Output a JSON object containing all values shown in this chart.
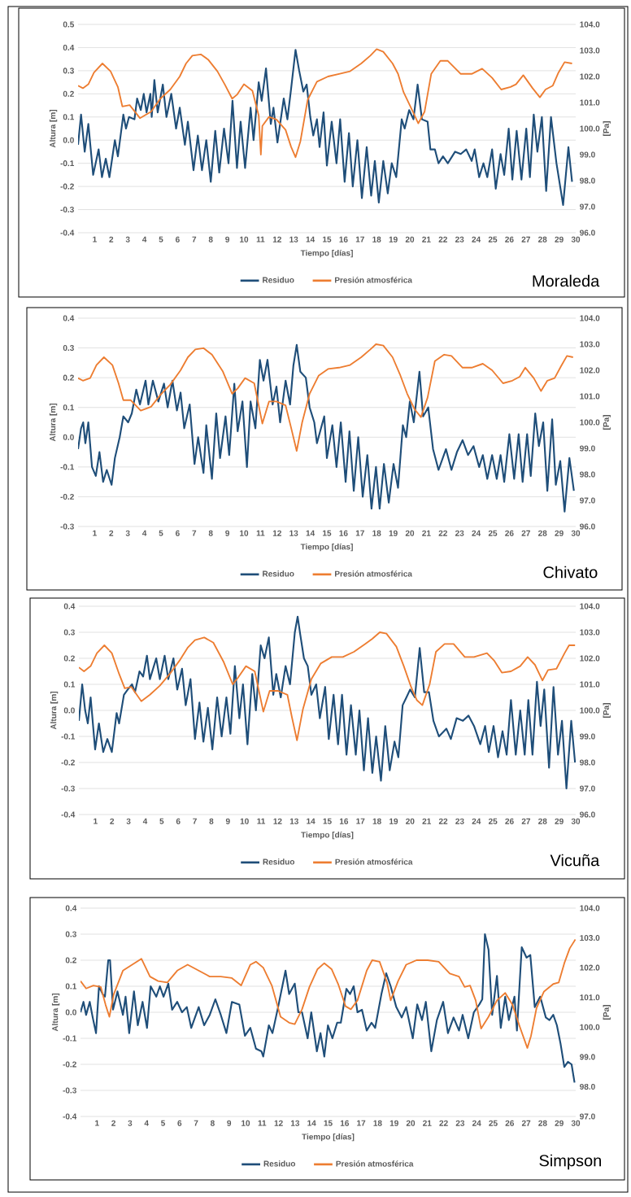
{
  "chart_data": [
    {
      "type": "line",
      "title": "Moraleda",
      "xlabel": "Tiempo [días]",
      "ylabel": "Altura [m]",
      "y2label": "[Pa]",
      "grid": "y",
      "legend": "bottom",
      "xlim": [
        0,
        30
      ],
      "xticks": [
        1,
        2,
        3,
        4,
        5,
        6,
        7,
        8,
        9,
        10,
        11,
        12,
        13,
        14,
        15,
        16,
        17,
        18,
        19,
        20,
        21,
        22,
        23,
        24,
        25,
        26,
        27,
        28,
        29,
        30
      ],
      "ylim": [
        -0.4,
        0.5
      ],
      "yticks": [
        {
          "value": -0.4,
          "label": "-0.4"
        },
        {
          "value": -0.3,
          "label": "-0.3"
        },
        {
          "value": -0.2,
          "label": "-0.2"
        },
        {
          "value": -0.1,
          "label": "-0.1"
        },
        {
          "value": 0,
          "label": "0.0"
        },
        0.1,
        0.2,
        0.3,
        0.4,
        0.5
      ],
      "y2lim": [
        96,
        104
      ],
      "y2ticks": [
        {
          "value": 96,
          "label": "96.0"
        },
        {
          "value": 97,
          "label": "97.0"
        },
        {
          "value": 98,
          "label": "98.0"
        },
        {
          "value": 99,
          "label": "99.0"
        },
        {
          "value": 100,
          "label": "100.0"
        },
        {
          "value": 101,
          "label": "101.0"
        },
        {
          "value": 102,
          "label": "102.0"
        },
        {
          "value": 103,
          "label": "103.0"
        },
        {
          "value": 104,
          "label": "104.0"
        }
      ],
      "series": [
        {
          "name": "Residuo",
          "color": "#1f4e79",
          "x": [
            0,
            0.18,
            0.4,
            0.62,
            0.91,
            1.24,
            1.44,
            1.67,
            1.89,
            2.22,
            2.4,
            2.73,
            2.89,
            3.07,
            3.4,
            3.56,
            3.78,
            3.96,
            4.13,
            4.36,
            4.44,
            4.6,
            4.8,
            5.11,
            5.33,
            5.62,
            5.91,
            6.13,
            6.44,
            6.62,
            6.96,
            7.22,
            7.47,
            7.73,
            8.0,
            8.27,
            8.51,
            8.8,
            9.07,
            9.31,
            9.58,
            9.8,
            10.07,
            10.4,
            10.58,
            10.89,
            11.07,
            11.33,
            11.62,
            11.78,
            12.02,
            12.4,
            12.62,
            12.84,
            13.11,
            13.33,
            13.58,
            13.78,
            14.0,
            14.18,
            14.4,
            14.56,
            14.8,
            15.0,
            15.29,
            15.58,
            15.8,
            16.07,
            16.33,
            16.56,
            16.84,
            17.11,
            17.4,
            17.67,
            17.89,
            18.13,
            18.4,
            18.67,
            18.91,
            19.18,
            19.51,
            19.69,
            19.96,
            20.22,
            20.47,
            20.73,
            21.07,
            21.24,
            21.51,
            21.73,
            22.0,
            22.29,
            22.73,
            23.07,
            23.4,
            23.73,
            23.91,
            24.18,
            24.44,
            24.67,
            24.96,
            25.18,
            25.47,
            25.69,
            25.96,
            26.18,
            26.44,
            26.73,
            27.02,
            27.24,
            27.47,
            27.69,
            27.96,
            28.22,
            28.51,
            28.84,
            29.24,
            29.56,
            29.78
          ],
          "values": [
            -0.02,
            0.11,
            -0.05,
            0.07,
            -0.15,
            -0.04,
            -0.16,
            -0.08,
            -0.16,
            0.0,
            -0.07,
            0.11,
            0.05,
            0.1,
            0.09,
            0.18,
            0.13,
            0.2,
            0.12,
            0.2,
            0.1,
            0.26,
            0.12,
            0.24,
            0.1,
            0.2,
            0.05,
            0.14,
            -0.02,
            0.08,
            -0.13,
            0.02,
            -0.13,
            0.0,
            -0.18,
            0.04,
            -0.14,
            0.05,
            -0.1,
            0.17,
            -0.12,
            0.08,
            -0.12,
            0.14,
            0.0,
            0.25,
            0.17,
            0.31,
            0.07,
            0.14,
            -0.01,
            0.18,
            0.09,
            0.22,
            0.39,
            0.3,
            0.21,
            0.24,
            0.1,
            0.02,
            0.09,
            -0.03,
            0.12,
            -0.11,
            0.08,
            -0.1,
            0.09,
            -0.18,
            0.03,
            -0.2,
            0.0,
            -0.25,
            -0.03,
            -0.24,
            -0.09,
            -0.27,
            -0.09,
            -0.23,
            -0.1,
            -0.16,
            0.09,
            0.05,
            0.13,
            0.09,
            0.24,
            0.09,
            0.08,
            -0.04,
            -0.04,
            -0.1,
            -0.07,
            -0.1,
            -0.05,
            -0.06,
            -0.04,
            -0.09,
            -0.04,
            -0.16,
            -0.1,
            -0.16,
            -0.04,
            -0.21,
            -0.06,
            -0.15,
            0.05,
            -0.17,
            0.04,
            -0.17,
            0.05,
            -0.16,
            0.11,
            -0.05,
            0.1,
            -0.22,
            0.1,
            -0.1,
            -0.28,
            -0.03,
            -0.18
          ]
        },
        {
          "name": "Presión atmosférica",
          "color": "#ed7d31",
          "axis": "y2",
          "x": [
            0,
            0.29,
            0.62,
            0.96,
            1.47,
            1.96,
            2.4,
            2.67,
            3.11,
            3.73,
            4.4,
            4.96,
            5.56,
            6.13,
            6.51,
            6.89,
            7.4,
            7.84,
            8.4,
            8.84,
            9.29,
            9.58,
            10.0,
            10.51,
            10.89,
            11.02,
            11.11,
            11.51,
            11.96,
            12.51,
            12.84,
            13.11,
            13.4,
            13.84,
            14.4,
            15.07,
            15.73,
            16.4,
            17.07,
            17.62,
            18.0,
            18.4,
            18.96,
            19.29,
            19.62,
            20.07,
            20.51,
            20.89,
            21.29,
            21.84,
            22.29,
            23.07,
            23.73,
            24.36,
            24.96,
            25.51,
            26.07,
            26.4,
            26.84,
            27.4,
            27.84,
            28.18,
            28.62,
            28.96,
            29.33,
            29.78
          ],
          "values": [
            101.65,
            101.55,
            101.7,
            102.15,
            102.5,
            102.2,
            101.6,
            100.85,
            100.9,
            100.4,
            100.65,
            101.15,
            101.5,
            102.0,
            102.5,
            102.8,
            102.85,
            102.65,
            102.2,
            101.7,
            101.15,
            101.3,
            101.7,
            101.45,
            100.5,
            99.0,
            100.1,
            100.45,
            100.35,
            99.95,
            99.3,
            98.9,
            99.5,
            101.1,
            101.8,
            102.0,
            102.1,
            102.2,
            102.5,
            102.8,
            103.05,
            102.95,
            102.5,
            102.1,
            101.4,
            100.8,
            100.2,
            100.65,
            102.1,
            102.6,
            102.6,
            102.1,
            102.1,
            102.3,
            101.95,
            101.5,
            101.6,
            101.7,
            102.05,
            101.55,
            101.2,
            101.5,
            101.65,
            102.15,
            102.55,
            102.5
          ]
        }
      ]
    },
    {
      "type": "line",
      "title": "Chivato",
      "xlabel": "Tiempo [días]",
      "ylabel": "Altura [m]",
      "y2label": "[Pa]",
      "grid": "y",
      "legend": "bottom",
      "xlim": [
        0,
        30
      ],
      "xticks": [
        1,
        2,
        3,
        4,
        5,
        6,
        7,
        8,
        9,
        10,
        11,
        12,
        13,
        14,
        15,
        16,
        17,
        18,
        19,
        20,
        21,
        22,
        23,
        24,
        25,
        26,
        27,
        28,
        29,
        30
      ],
      "ylim": [
        -0.3,
        0.4
      ],
      "yticks": [
        {
          "value": -0.3,
          "label": "-0.3"
        },
        {
          "value": -0.2,
          "label": "-0.2"
        },
        {
          "value": -0.1,
          "label": "-0.1"
        },
        {
          "value": 0,
          "label": "0.0"
        },
        0.1,
        0.2,
        0.3,
        0.4
      ],
      "y2lim": [
        96,
        104
      ],
      "y2ticks": [
        {
          "value": 96,
          "label": "96.0"
        },
        {
          "value": 97,
          "label": "97.0"
        },
        {
          "value": 98,
          "label": "98.0"
        },
        {
          "value": 99,
          "label": "99.0"
        },
        {
          "value": 100,
          "label": "100.0"
        },
        {
          "value": 101,
          "label": "101.0"
        },
        {
          "value": 102,
          "label": "102.0"
        },
        {
          "value": 103,
          "label": "103.0"
        },
        {
          "value": 104,
          "label": "104.0"
        }
      ],
      "series": [
        {
          "name": "Residuo",
          "color": "#1f4e79",
          "x": [
            0,
            0.18,
            0.31,
            0.44,
            0.62,
            0.84,
            1.07,
            1.29,
            1.51,
            1.73,
            2.02,
            2.22,
            2.51,
            2.73,
            3.02,
            3.24,
            3.51,
            3.73,
            4.07,
            4.24,
            4.51,
            4.84,
            5.18,
            5.4,
            5.69,
            5.96,
            6.18,
            6.4,
            6.73,
            7.02,
            7.24,
            7.56,
            7.73,
            8.07,
            8.33,
            8.56,
            8.89,
            9.11,
            9.42,
            9.62,
            9.91,
            10.18,
            10.4,
            10.69,
            10.96,
            11.18,
            11.42,
            11.73,
            11.96,
            12.18,
            12.51,
            12.78,
            12.98,
            13.18,
            13.4,
            13.73,
            13.96,
            14.24,
            14.4,
            14.84,
            15.0,
            15.33,
            15.58,
            15.84,
            16.13,
            16.36,
            16.62,
            16.89,
            17.16,
            17.44,
            17.69,
            17.96,
            18.18,
            18.44,
            18.73,
            19.02,
            19.29,
            19.58,
            19.78,
            20.0,
            20.24,
            20.58,
            20.8,
            21.11,
            21.4,
            21.73,
            22.18,
            22.51,
            22.84,
            23.18,
            23.51,
            23.84,
            24.18,
            24.4,
            24.67,
            24.96,
            25.24,
            25.47,
            25.69,
            26.0,
            26.29,
            26.56,
            26.8,
            27.07,
            27.29,
            27.56,
            27.78,
            28.04,
            28.29,
            28.58,
            28.8,
            29.07,
            29.33,
            29.62,
            29.89
          ],
          "values": [
            -0.04,
            0.03,
            0.05,
            -0.02,
            0.05,
            -0.1,
            -0.13,
            -0.05,
            -0.15,
            -0.11,
            -0.16,
            -0.07,
            0.0,
            0.07,
            0.05,
            0.08,
            0.16,
            0.11,
            0.19,
            0.11,
            0.19,
            0.12,
            0.18,
            0.1,
            0.19,
            0.09,
            0.15,
            0.03,
            0.11,
            -0.09,
            0.0,
            -0.12,
            0.04,
            -0.14,
            0.08,
            -0.07,
            0.07,
            -0.06,
            0.18,
            0.02,
            0.12,
            -0.1,
            0.12,
            0.03,
            0.26,
            0.19,
            0.26,
            0.11,
            0.17,
            0.05,
            0.19,
            0.11,
            0.24,
            0.31,
            0.22,
            0.2,
            0.1,
            0.05,
            -0.02,
            0.07,
            -0.07,
            0.04,
            -0.1,
            0.05,
            -0.15,
            0.02,
            -0.18,
            0.0,
            -0.2,
            -0.06,
            -0.24,
            -0.1,
            -0.24,
            -0.09,
            -0.22,
            -0.09,
            -0.17,
            0.04,
            0.0,
            0.12,
            0.05,
            0.22,
            0.07,
            0.1,
            -0.04,
            -0.11,
            -0.04,
            -0.11,
            -0.05,
            -0.01,
            -0.06,
            -0.03,
            -0.1,
            -0.06,
            -0.14,
            -0.06,
            -0.14,
            -0.06,
            -0.15,
            0.01,
            -0.14,
            0.01,
            -0.15,
            0.01,
            -0.13,
            0.08,
            -0.03,
            0.05,
            -0.18,
            0.06,
            -0.16,
            -0.08,
            -0.25,
            -0.07,
            -0.18
          ]
        },
        {
          "name": "Presión atmosférica",
          "color": "#ed7d31",
          "axis": "y2",
          "x": [
            0,
            0.29,
            0.73,
            1.11,
            1.56,
            2.07,
            2.44,
            2.73,
            3.18,
            3.78,
            4.4,
            4.96,
            5.56,
            6.18,
            6.62,
            7.07,
            7.56,
            8.07,
            8.73,
            9.29,
            9.62,
            10.07,
            10.62,
            11.11,
            11.51,
            11.96,
            12.51,
            12.84,
            13.18,
            13.51,
            13.96,
            14.51,
            15.07,
            15.73,
            16.4,
            17.07,
            17.62,
            17.96,
            18.4,
            18.96,
            19.4,
            19.84,
            20.29,
            20.67,
            21.07,
            21.51,
            22.07,
            22.51,
            23.18,
            23.73,
            24.4,
            24.96,
            25.62,
            26.18,
            26.62,
            26.96,
            27.47,
            27.91,
            28.29,
            28.73,
            29.11,
            29.47,
            29.84
          ],
          "values": [
            101.7,
            101.6,
            101.7,
            102.2,
            102.5,
            102.2,
            101.5,
            100.85,
            100.85,
            100.45,
            100.6,
            101.05,
            101.45,
            102.0,
            102.5,
            102.8,
            102.85,
            102.6,
            101.95,
            101.1,
            101.3,
            101.7,
            101.5,
            99.95,
            100.8,
            100.8,
            100.65,
            99.8,
            98.9,
            100.0,
            101.1,
            101.8,
            102.05,
            102.1,
            102.2,
            102.5,
            102.8,
            103.0,
            102.95,
            102.5,
            101.85,
            101.1,
            100.5,
            100.2,
            100.95,
            102.35,
            102.6,
            102.55,
            102.1,
            102.1,
            102.25,
            102.0,
            101.5,
            101.6,
            101.75,
            102.1,
            101.7,
            101.2,
            101.6,
            101.7,
            102.15,
            102.55,
            102.5
          ]
        }
      ]
    },
    {
      "type": "line",
      "title": "Vicuña",
      "xlabel": "Tiempo [días]",
      "ylabel": "Altura [m]",
      "y2label": "[Pa]",
      "grid": "y",
      "legend": "bottom",
      "xlim": [
        0,
        30
      ],
      "xticks": [
        1,
        2,
        3,
        4,
        5,
        6,
        7,
        8,
        9,
        10,
        11,
        12,
        13,
        14,
        15,
        16,
        17,
        18,
        19,
        20,
        21,
        22,
        23,
        24,
        25,
        26,
        27,
        28,
        29,
        30
      ],
      "ylim": [
        -0.4,
        0.4
      ],
      "yticks": [
        {
          "value": -0.4,
          "label": "-0.4"
        },
        {
          "value": -0.3,
          "label": "-0.3"
        },
        {
          "value": -0.2,
          "label": "-0.2"
        },
        {
          "value": -0.1,
          "label": "-0.1"
        },
        {
          "value": 0,
          "label": "0.0"
        },
        0.1,
        0.2,
        0.3,
        0.4
      ],
      "y2lim": [
        96,
        104
      ],
      "y2ticks": [
        {
          "value": 96,
          "label": "96.0"
        },
        {
          "value": 97,
          "label": "97.0"
        },
        {
          "value": 98,
          "label": "98.0"
        },
        {
          "value": 99,
          "label": "99.0"
        },
        {
          "value": 100,
          "label": "100.0"
        },
        {
          "value": 101,
          "label": "101.0"
        },
        {
          "value": 102,
          "label": "102.0"
        },
        {
          "value": 103,
          "label": "103.0"
        },
        {
          "value": 104,
          "label": "104.0"
        }
      ],
      "series": [
        {
          "name": "Residuo",
          "color": "#1f4e79",
          "x": [
            0,
            0.2,
            0.38,
            0.54,
            0.71,
            0.98,
            1.21,
            1.47,
            1.72,
            1.99,
            2.28,
            2.43,
            2.72,
            2.95,
            3.21,
            3.39,
            3.66,
            3.88,
            4.11,
            4.29,
            4.67,
            4.89,
            5.18,
            5.4,
            5.71,
            5.94,
            6.23,
            6.45,
            6.74,
            7.01,
            7.28,
            7.52,
            7.79,
            8.06,
            8.35,
            8.62,
            8.91,
            9.15,
            9.42,
            9.69,
            9.91,
            10.18,
            10.47,
            10.69,
            10.98,
            11.21,
            11.47,
            11.74,
            11.92,
            12.19,
            12.48,
            12.75,
            13.04,
            13.21,
            13.37,
            13.59,
            13.82,
            14.04,
            14.33,
            14.55,
            14.87,
            15.09,
            15.38,
            15.65,
            15.89,
            16.16,
            16.43,
            16.72,
            16.94,
            17.21,
            17.46,
            17.72,
            17.95,
            18.24,
            18.5,
            18.77,
            19.06,
            19.29,
            19.55,
            19.78,
            20.0,
            20.29,
            20.58,
            20.85,
            21.14,
            21.41,
            21.74,
            22.19,
            22.46,
            22.81,
            23.19,
            23.53,
            23.86,
            24.24,
            24.53,
            24.75,
            25.04,
            25.31,
            25.58,
            25.83,
            26.09,
            26.38,
            26.65,
            26.92,
            27.14,
            27.39,
            27.66,
            27.88,
            28.1,
            28.39,
            28.66,
            28.93,
            29.17,
            29.44,
            29.73,
            29.96
          ],
          "values": [
            -0.04,
            0.1,
            0.0,
            -0.05,
            0.05,
            -0.15,
            -0.05,
            -0.16,
            -0.11,
            -0.16,
            -0.01,
            -0.05,
            0.06,
            0.08,
            0.1,
            0.07,
            0.15,
            0.13,
            0.21,
            0.12,
            0.2,
            0.12,
            0.21,
            0.12,
            0.2,
            0.08,
            0.16,
            0.02,
            0.12,
            -0.11,
            0.03,
            -0.12,
            0.01,
            -0.15,
            0.05,
            -0.1,
            0.05,
            -0.09,
            0.17,
            -0.03,
            0.1,
            -0.13,
            0.14,
            0.0,
            0.25,
            0.2,
            0.28,
            0.06,
            0.14,
            0.05,
            0.17,
            0.1,
            0.3,
            0.36,
            0.29,
            0.2,
            0.17,
            0.06,
            0.1,
            -0.03,
            0.09,
            -0.11,
            0.06,
            -0.13,
            0.06,
            -0.17,
            0.02,
            -0.17,
            0.0,
            -0.23,
            -0.03,
            -0.24,
            -0.1,
            -0.27,
            -0.06,
            -0.23,
            -0.12,
            -0.18,
            0.02,
            0.05,
            0.08,
            0.05,
            0.24,
            0.07,
            0.07,
            -0.04,
            -0.1,
            -0.07,
            -0.11,
            -0.03,
            -0.04,
            -0.02,
            -0.06,
            -0.13,
            -0.06,
            -0.16,
            -0.06,
            -0.18,
            -0.08,
            -0.17,
            0.04,
            -0.17,
            0.0,
            -0.17,
            0.04,
            -0.17,
            0.11,
            -0.06,
            0.08,
            -0.22,
            0.09,
            -0.17,
            -0.04,
            -0.3,
            -0.04,
            -0.2
          ]
        },
        {
          "name": "Presión atmosférica",
          "color": "#ed7d31",
          "axis": "y2",
          "x": [
            0,
            0.31,
            0.71,
            1.09,
            1.54,
            1.99,
            2.43,
            2.77,
            3.17,
            3.77,
            4.29,
            4.89,
            5.49,
            6.12,
            6.56,
            7.01,
            7.57,
            8.12,
            8.75,
            9.29,
            9.6,
            10.09,
            10.62,
            11.14,
            11.52,
            12.03,
            12.59,
            12.86,
            13.17,
            13.53,
            14.04,
            14.6,
            15.27,
            15.94,
            16.61,
            17.28,
            17.72,
            18.17,
            18.57,
            19.17,
            19.62,
            20.06,
            20.4,
            20.74,
            21.18,
            21.56,
            22.08,
            22.63,
            23.3,
            23.86,
            24.64,
            25.09,
            25.54,
            26.09,
            26.65,
            27.1,
            27.54,
            27.99,
            28.33,
            28.84,
            29.33,
            29.6,
            29.96
          ],
          "values": [
            101.65,
            101.5,
            101.7,
            102.2,
            102.5,
            102.2,
            101.4,
            100.85,
            100.9,
            100.35,
            100.6,
            100.95,
            101.4,
            101.95,
            102.4,
            102.7,
            102.8,
            102.6,
            101.85,
            101.0,
            101.25,
            101.7,
            101.5,
            99.95,
            100.75,
            100.75,
            100.6,
            99.75,
            98.85,
            100.05,
            101.2,
            101.8,
            102.05,
            102.05,
            102.25,
            102.55,
            102.75,
            103.0,
            102.95,
            102.45,
            101.7,
            100.9,
            100.4,
            100.2,
            101.0,
            102.25,
            102.55,
            102.55,
            102.05,
            102.05,
            102.2,
            101.9,
            101.45,
            101.5,
            101.7,
            102.05,
            101.75,
            101.15,
            101.55,
            101.6,
            102.2,
            102.5,
            102.5
          ]
        }
      ]
    },
    {
      "type": "line",
      "title": "Simpson",
      "xlabel": "Tiempo [días]",
      "ylabel": "Altura [m]",
      "y2label": "[Pa]",
      "grid": "y",
      "legend": "bottom",
      "xlim": [
        0,
        30
      ],
      "xticks": [
        1,
        2,
        3,
        4,
        5,
        6,
        7,
        8,
        9,
        10,
        11,
        12,
        13,
        14,
        15,
        16,
        17,
        18,
        19,
        20,
        21,
        22,
        23,
        24,
        25,
        26,
        27,
        28,
        29,
        30
      ],
      "ylim": [
        -0.4,
        0.4
      ],
      "yticks": [
        {
          "value": -0.4,
          "label": "-0.4"
        },
        {
          "value": -0.3,
          "label": "-0.3"
        },
        {
          "value": -0.2,
          "label": "-0.2"
        },
        {
          "value": -0.1,
          "label": "-0.1"
        },
        {
          "value": 0,
          "label": "0.0"
        },
        0.1,
        0.2,
        0.3,
        0.4
      ],
      "y2lim": [
        97,
        104
      ],
      "y2ticks": [
        {
          "value": 97,
          "label": "97.0"
        },
        {
          "value": 98,
          "label": "98.0"
        },
        {
          "value": 99,
          "label": "99.0"
        },
        {
          "value": 100,
          "label": "100.0"
        },
        {
          "value": 101,
          "label": "101.0"
        },
        {
          "value": 102,
          "label": "102.0"
        },
        {
          "value": 103,
          "label": "103.0"
        },
        {
          "value": 104,
          "label": "104.0"
        }
      ],
      "series": [
        {
          "name": "Residuo",
          "color": "#1f4e79",
          "x": [
            0,
            0.18,
            0.34,
            0.56,
            0.74,
            0.94,
            1.12,
            1.34,
            1.48,
            1.68,
            1.79,
            1.97,
            2.24,
            2.57,
            2.73,
            2.95,
            3.24,
            3.47,
            3.76,
            4.03,
            4.25,
            4.59,
            4.81,
            5.03,
            5.32,
            5.55,
            5.86,
            6.15,
            6.44,
            6.71,
            7.16,
            7.49,
            7.83,
            8.17,
            8.5,
            8.84,
            9.17,
            9.62,
            9.96,
            10.29,
            10.63,
            10.96,
            11.07,
            11.41,
            11.63,
            11.97,
            12.42,
            12.64,
            12.98,
            13.2,
            13.42,
            13.76,
            13.98,
            14.32,
            14.54,
            14.77,
            14.99,
            15.26,
            15.55,
            15.77,
            16.11,
            16.33,
            16.55,
            16.78,
            17.05,
            17.34,
            17.63,
            17.85,
            18.23,
            18.52,
            18.79,
            19.13,
            19.46,
            19.73,
            20.13,
            20.4,
            20.69,
            20.92,
            21.25,
            21.59,
            21.97,
            22.26,
            22.6,
            22.93,
            23.15,
            23.49,
            23.83,
            24.16,
            24.34,
            24.5,
            24.72,
            24.94,
            25.23,
            25.46,
            25.73,
            25.95,
            26.29,
            26.44,
            26.73,
            27.02,
            27.25,
            27.52,
            27.85,
            28.19,
            28.41,
            28.64,
            28.86,
            29.08,
            29.31,
            29.53,
            29.75,
            29.93
          ],
          "values": [
            0.0,
            0.04,
            -0.01,
            0.04,
            -0.02,
            -0.08,
            0.1,
            0.07,
            0.06,
            0.2,
            0.2,
            0.01,
            0.08,
            -0.01,
            0.06,
            -0.08,
            0.08,
            -0.05,
            0.04,
            -0.06,
            0.1,
            0.06,
            0.1,
            0.06,
            0.11,
            0.01,
            0.04,
            0.0,
            0.02,
            -0.06,
            0.02,
            -0.05,
            -0.01,
            0.05,
            -0.01,
            -0.08,
            0.04,
            0.03,
            -0.09,
            -0.06,
            -0.14,
            -0.15,
            -0.17,
            -0.05,
            -0.08,
            0.02,
            0.16,
            0.07,
            0.11,
            0.0,
            0.0,
            -0.1,
            0.0,
            -0.15,
            -0.08,
            -0.17,
            -0.05,
            -0.1,
            -0.04,
            -0.04,
            0.09,
            0.07,
            0.1,
            0.0,
            0.01,
            -0.07,
            -0.04,
            -0.06,
            0.07,
            0.15,
            0.1,
            0.02,
            -0.02,
            0.02,
            -0.1,
            0.03,
            -0.03,
            0.04,
            -0.15,
            -0.03,
            0.04,
            -0.08,
            -0.02,
            -0.07,
            -0.01,
            -0.1,
            0.0,
            0.03,
            0.05,
            0.3,
            0.24,
            -0.01,
            0.14,
            -0.06,
            0.06,
            -0.03,
            0.06,
            -0.07,
            0.25,
            0.21,
            0.22,
            0.02,
            0.06,
            -0.02,
            -0.03,
            -0.01,
            -0.05,
            -0.12,
            -0.21,
            -0.19,
            -0.2,
            -0.27
          ]
        },
        {
          "name": "Presión atmosférica",
          "color": "#ed7d31",
          "axis": "y2",
          "x": [
            0,
            0.34,
            0.78,
            1.23,
            1.52,
            1.75,
            2.01,
            2.57,
            3.13,
            3.69,
            4.21,
            4.7,
            5.26,
            5.86,
            6.49,
            7.16,
            7.83,
            8.5,
            9.17,
            9.73,
            10.29,
            10.63,
            11.07,
            11.59,
            12.12,
            12.64,
            12.98,
            13.42,
            13.87,
            14.36,
            14.77,
            15.21,
            15.61,
            16.06,
            16.38,
            16.78,
            17.34,
            17.67,
            18.12,
            18.57,
            18.79,
            19.24,
            19.73,
            20.36,
            21.03,
            21.7,
            22.37,
            22.93,
            23.27,
            23.6,
            23.94,
            24.27,
            24.72,
            25.23,
            25.73,
            26.17,
            26.62,
            27.07,
            27.29,
            27.63,
            28.08,
            28.64,
            28.97,
            29.31,
            29.64,
            29.98
          ],
          "values": [
            101.55,
            101.3,
            101.4,
            101.35,
            100.75,
            100.35,
            101.1,
            101.9,
            102.1,
            102.3,
            101.7,
            101.55,
            101.5,
            101.9,
            102.1,
            101.9,
            101.7,
            101.7,
            101.65,
            101.4,
            102.1,
            102.2,
            102.0,
            101.4,
            100.35,
            100.15,
            100.1,
            100.6,
            101.35,
            101.95,
            102.15,
            101.95,
            101.45,
            100.7,
            100.6,
            100.9,
            101.9,
            102.25,
            102.2,
            101.5,
            100.9,
            101.55,
            102.1,
            102.25,
            102.25,
            102.2,
            101.8,
            101.7,
            101.35,
            101.4,
            100.9,
            99.95,
            100.35,
            100.9,
            101.15,
            100.75,
            100.0,
            99.3,
            99.7,
            100.65,
            101.2,
            101.45,
            101.5,
            102.15,
            102.65,
            102.95
          ]
        }
      ]
    }
  ]
}
